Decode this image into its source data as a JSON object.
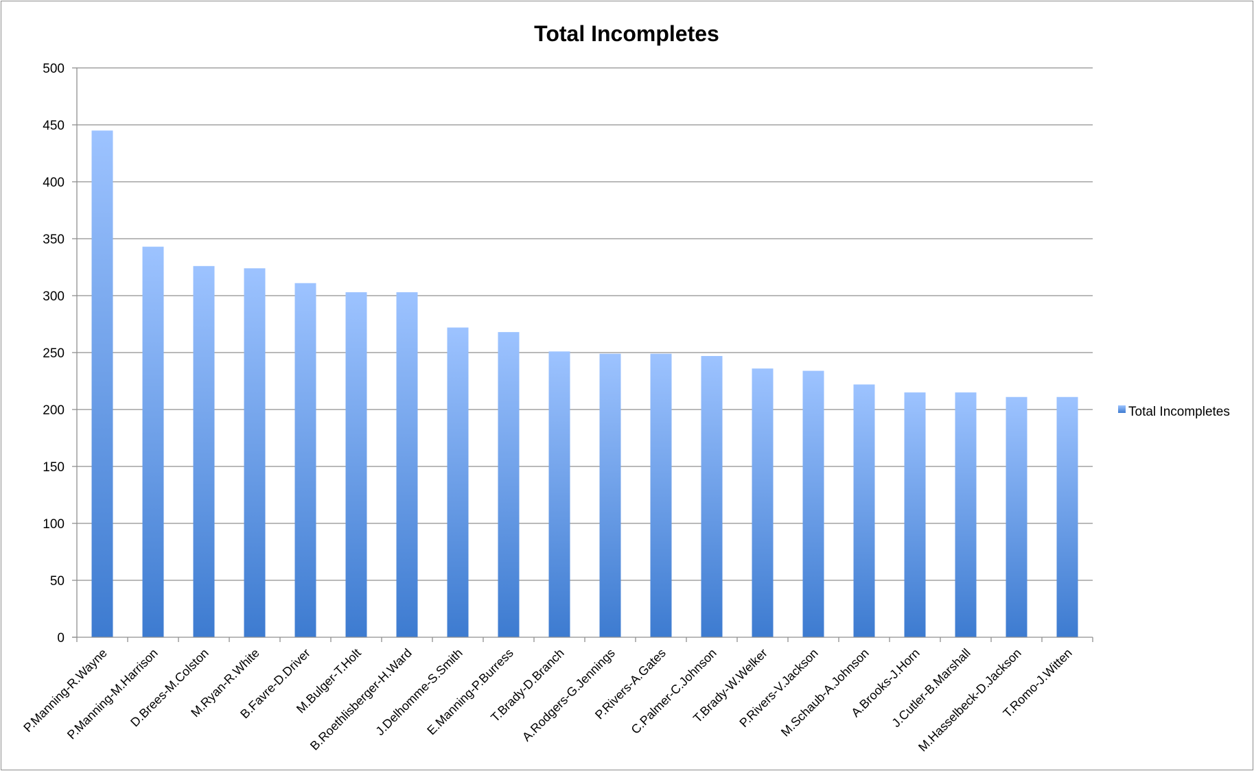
{
  "chart_data": {
    "type": "bar",
    "title": "Total Incompletes",
    "xlabel": "",
    "ylabel": "",
    "ylim": [
      0,
      500
    ],
    "yticks": [
      0,
      50,
      100,
      150,
      200,
      250,
      300,
      350,
      400,
      450,
      500
    ],
    "grid": true,
    "legend_position": "right",
    "bar_color_top": "#9dc3ff",
    "bar_color_bottom": "#3d7bd0",
    "categories": [
      "P.Manning-R.Wayne",
      "P.Manning-M.Harrison",
      "D.Brees-M.Colston",
      "M.Ryan-R.White",
      "B.Favre-D.Driver",
      "M.Bulger-T.Holt",
      "B.Roethlisberger-H.Ward",
      "J.Delhomme-S.Smith",
      "E.Manning-P.Burress",
      "T.Brady-D.Branch",
      "A.Rodgers-G.Jennings",
      "P.Rivers-A.Gates",
      "C.Palmer-C.Johnson",
      "T.Brady-W.Welker",
      "P.Rivers-V.Jackson",
      "M.Schaub-A.Johnson",
      "A.Brooks-J.Horn",
      "J.Cutler-B.Marshall",
      "M.Hasselbeck-D.Jackson",
      "T.Romo-J.Witten"
    ],
    "series": [
      {
        "name": "Total Incompletes",
        "values": [
          445,
          343,
          326,
          324,
          311,
          303,
          303,
          272,
          268,
          251,
          249,
          249,
          247,
          236,
          234,
          222,
          215,
          215,
          211,
          211
        ]
      }
    ]
  }
}
